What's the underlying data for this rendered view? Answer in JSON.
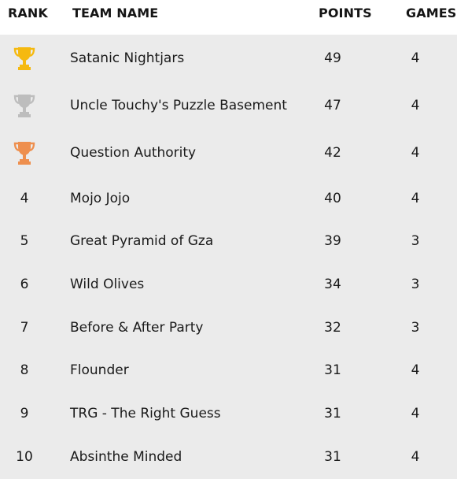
{
  "header": {
    "rank": "RANK",
    "team": "TEAM NAME",
    "points": "POINTS",
    "games": "GAMES"
  },
  "colors": {
    "gold": "#f5b90f",
    "silver": "#bdbdbd",
    "bronze": "#ee8f4e",
    "header_bg": "#ffffff",
    "body_bg": "#ebebeb"
  },
  "rows": [
    {
      "rank": "",
      "medal": "gold-trophy-icon",
      "team": "Satanic Nightjars",
      "points": "49",
      "games": "4"
    },
    {
      "rank": "",
      "medal": "silver-trophy-icon",
      "team": "Uncle Touchy's Puzzle Basement",
      "points": "47",
      "games": "4"
    },
    {
      "rank": "",
      "medal": "bronze-trophy-icon",
      "team": "Question Authority",
      "points": "42",
      "games": "4"
    },
    {
      "rank": "4",
      "team": "Mojo Jojo",
      "points": "40",
      "games": "4"
    },
    {
      "rank": "5",
      "team": "Great Pyramid of Gza",
      "points": "39",
      "games": "3"
    },
    {
      "rank": "6",
      "team": "Wild Olives",
      "points": "34",
      "games": "3"
    },
    {
      "rank": "7",
      "team": "Before & After Party",
      "points": "32",
      "games": "3"
    },
    {
      "rank": "8",
      "team": "Flounder",
      "points": "31",
      "games": "4"
    },
    {
      "rank": "9",
      "team": "TRG - The Right Guess",
      "points": "31",
      "games": "4"
    },
    {
      "rank": "10",
      "team": "Absinthe Minded",
      "points": "31",
      "games": "4"
    }
  ]
}
